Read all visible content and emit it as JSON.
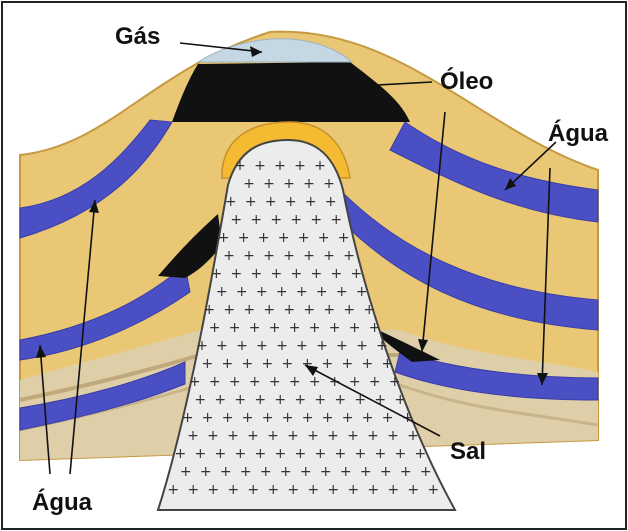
{
  "labels": {
    "gas": "Gás",
    "oil": "Óleo",
    "water_right": "Água",
    "water_bottom": "Água",
    "salt": "Sal"
  },
  "colors": {
    "sand": "#eac774",
    "sand_dark": "#d7b05a",
    "tan": "#dfcfa8",
    "water": "#4b4fc4",
    "water_light": "#7f84de",
    "oil": "#111111",
    "gas": "#c5d7e3",
    "salt": "#ececec",
    "cap": "#f4bb32",
    "frame": "#222222"
  },
  "icons": {
    "salt_marks": "plus-glyph"
  }
}
